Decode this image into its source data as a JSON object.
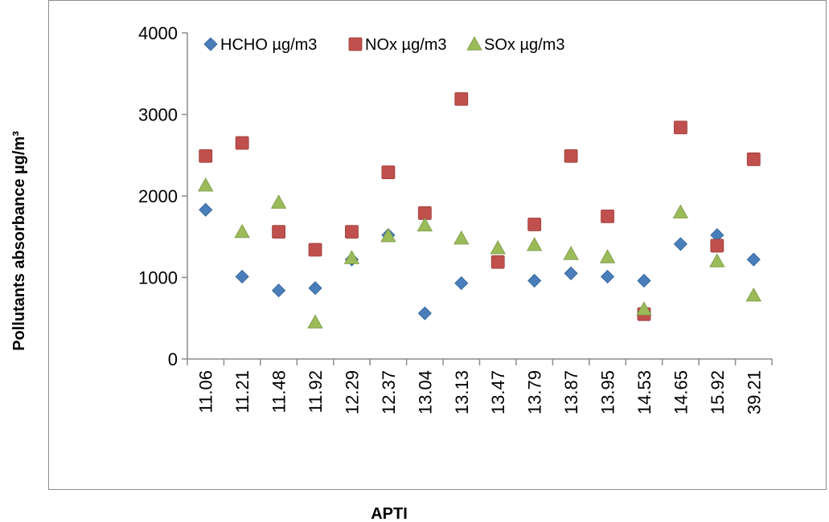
{
  "chart_data": {
    "type": "scatter",
    "title": "",
    "xlabel": "APTI",
    "ylabel": "Pollutants absorbance µg/m³",
    "ylim": [
      0,
      4000
    ],
    "yticks": [
      0,
      1000,
      2000,
      3000,
      4000
    ],
    "categories": [
      "11.06",
      "11.21",
      "11.48",
      "11.92",
      "12.29",
      "12.37",
      "13.04",
      "13.13",
      "13.47",
      "13.79",
      "13.87",
      "13.95",
      "14.53",
      "14.65",
      "15.92",
      "39.21"
    ],
    "grid": false,
    "legend_position": "top",
    "series": [
      {
        "name": "HCHO µg/m3",
        "marker": "diamond",
        "color": "#4a7ebb",
        "values": [
          1830,
          1010,
          840,
          870,
          1220,
          1520,
          560,
          930,
          null,
          960,
          1050,
          1010,
          960,
          1410,
          1520,
          1220
        ]
      },
      {
        "name": "NOx µg/m3",
        "marker": "square",
        "color": "#c0504d",
        "values": [
          2490,
          2650,
          1560,
          1340,
          1560,
          2290,
          1790,
          3190,
          1190,
          1650,
          2490,
          1750,
          550,
          2840,
          1390,
          2450
        ]
      },
      {
        "name": "SOx µg/m3",
        "marker": "triangle",
        "color": "#9bbb59",
        "values": [
          2130,
          1560,
          1920,
          450,
          1240,
          1510,
          1640,
          1480,
          1360,
          1400,
          1290,
          1250,
          610,
          1800,
          1200,
          780
        ]
      }
    ]
  }
}
